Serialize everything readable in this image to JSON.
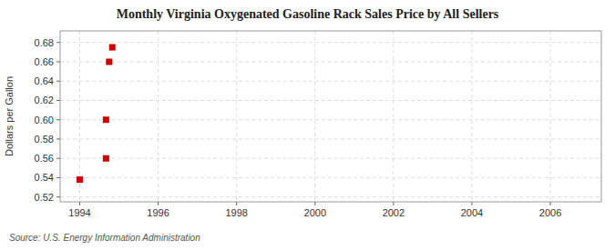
{
  "chart_data": {
    "type": "scatter",
    "title": "Monthly Virginia Oxygenated Gasoline Rack Sales Price by All Sellers",
    "y_label": "Dollars per Gallon",
    "annotations": [
      "Source: U.S. Energy Information Administration"
    ],
    "x": [
      1994.0,
      1994.67,
      1994.67,
      1994.75,
      1994.83
    ],
    "values": [
      0.538,
      0.56,
      0.6,
      0.66,
      0.675
    ],
    "color": "#cc0000",
    "marker": "square",
    "xlim": [
      1993.5,
      2007.3
    ],
    "ylim": [
      0.515,
      0.692
    ],
    "xticks": [
      1994,
      1996,
      1998,
      2000,
      2002,
      2004,
      2006
    ],
    "yticks": [
      0.52,
      0.54,
      0.56,
      0.58,
      {
        "value": 0.6,
        "label": "0.60"
      },
      0.62,
      0.64,
      0.66,
      0.68
    ],
    "grid": true
  }
}
